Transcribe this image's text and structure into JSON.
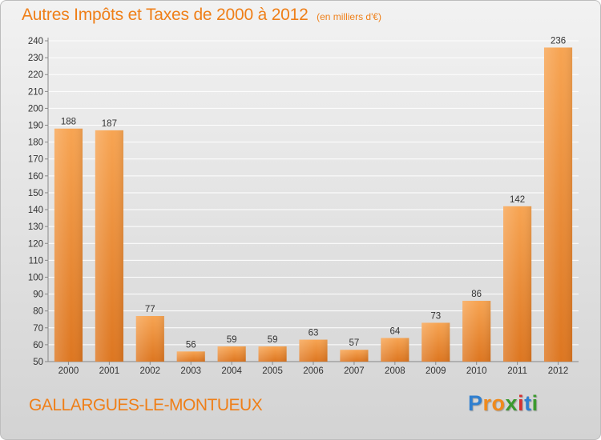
{
  "header": {
    "title": "Autres Impôts et Taxes de 2000 à 2012",
    "subtitle": "(en milliers d'€)"
  },
  "footer": {
    "commune": "GALLARGUES-LE-MONTUEUX",
    "logo": {
      "text": "Proxiti",
      "letters": [
        {
          "char": "P",
          "color": "#2f7fd0"
        },
        {
          "char": "r",
          "color": "#f08a1c"
        },
        {
          "char": "o",
          "color": "#f08a1c"
        },
        {
          "char": "x",
          "color": "#3c9a2f"
        },
        {
          "char": "i",
          "color": "#d62f2f"
        },
        {
          "char": "t",
          "color": "#2f7fd0"
        },
        {
          "char": "i",
          "color": "#3c9a2f"
        }
      ]
    }
  },
  "colors": {
    "accent": "#ef7f18",
    "bar_light": "#f7a452",
    "bar_dark": "#dd7620",
    "grid": "#ffffff",
    "text": "#333333"
  },
  "chart_data": {
    "type": "bar",
    "title": "Autres Impôts et Taxes de 2000 à 2012",
    "subtitle": "(en milliers d'€)",
    "xlabel": "",
    "ylabel": "",
    "categories": [
      "2000",
      "2001",
      "2002",
      "2003",
      "2004",
      "2005",
      "2006",
      "2007",
      "2008",
      "2009",
      "2010",
      "2011",
      "2012"
    ],
    "values": [
      188,
      187,
      77,
      56,
      59,
      59,
      63,
      57,
      64,
      73,
      86,
      142,
      236
    ],
    "data_labels": [
      "188",
      "187",
      "77",
      "56",
      "59",
      "59",
      "63",
      "57",
      "64",
      "73",
      "86",
      "142",
      "236"
    ],
    "ylim": [
      50,
      240
    ],
    "yticks": [
      50,
      60,
      70,
      80,
      90,
      100,
      110,
      120,
      130,
      140,
      150,
      160,
      170,
      180,
      190,
      200,
      210,
      220,
      230,
      240
    ],
    "grid": true,
    "legend": "none"
  }
}
